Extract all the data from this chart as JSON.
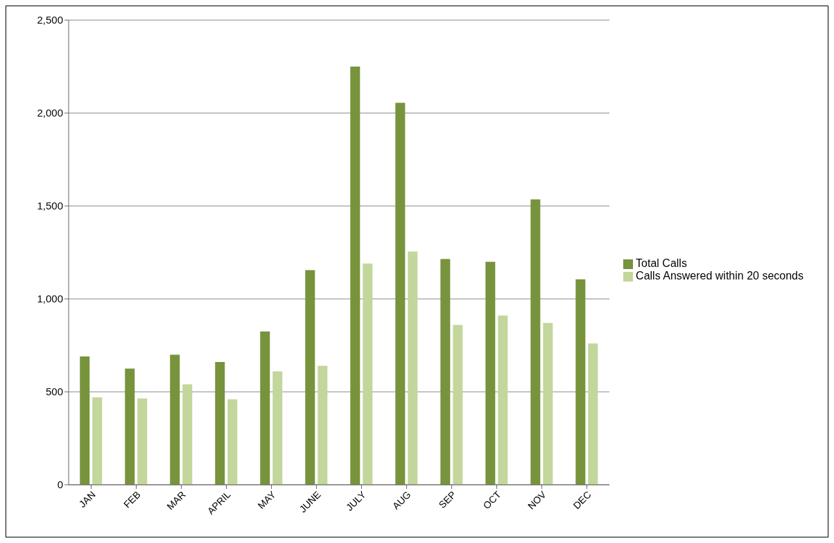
{
  "chart_data": {
    "type": "bar",
    "categories": [
      "JAN",
      "FEB",
      "MAR",
      "APRIL",
      "MAY",
      "JUNE",
      "JULY",
      "AUG",
      "SEP",
      "OCT",
      "NOV",
      "DEC"
    ],
    "series": [
      {
        "name": "Total Calls",
        "color": "#77933c",
        "values": [
          690,
          625,
          700,
          660,
          825,
          1155,
          2250,
          2055,
          1215,
          1200,
          1535,
          1105
        ]
      },
      {
        "name": "Calls Answered within 20 seconds",
        "color": "#c3d69b",
        "values": [
          470,
          465,
          540,
          460,
          610,
          640,
          1190,
          1255,
          860,
          910,
          870,
          760
        ]
      }
    ],
    "ylim": [
      0,
      2500
    ],
    "yticks": [
      0,
      500,
      {
        "value": 1000,
        "label": "1,000"
      },
      {
        "value": 1500,
        "label": "1,500"
      },
      {
        "value": 2000,
        "label": "2,000"
      },
      {
        "value": 2500,
        "label": "2,500"
      }
    ],
    "grid": "y",
    "legend": "right"
  }
}
